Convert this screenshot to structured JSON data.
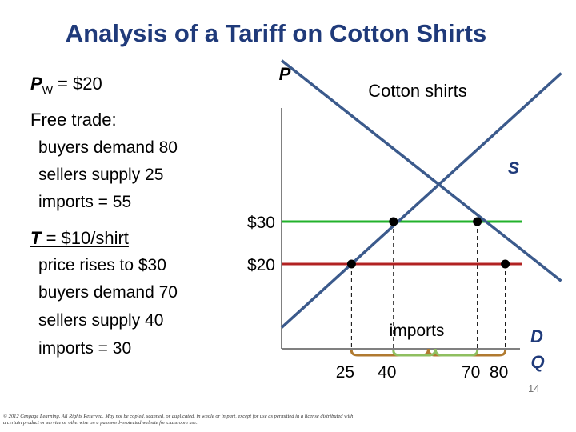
{
  "title": "Analysis of a Tariff on Cotton Shirts",
  "pw": {
    "sym": "P",
    "sub": "W",
    "rest": " = $20"
  },
  "free_trade": {
    "header": "Free trade:",
    "lines": [
      "buyers demand 80",
      "sellers supply 25",
      "imports = 55"
    ]
  },
  "tariff": {
    "header_T": "T",
    "header_rest": " = $10/shirt",
    "lines": [
      "price rises to $30",
      "buyers demand 70",
      "sellers supply 40",
      "imports = 30"
    ]
  },
  "chart_data": {
    "type": "line",
    "title": "Cotton shirts",
    "ylabel": "P",
    "xlabel": "Q",
    "series": [
      {
        "name": "S",
        "x": [
          0,
          100
        ],
        "y": [
          5,
          65
        ],
        "color": "#3b5a8c"
      },
      {
        "name": "D",
        "x": [
          0,
          100
        ],
        "y": [
          68,
          16
        ],
        "color": "#3b5a8c"
      }
    ],
    "price_lines": [
      {
        "label": "$30",
        "value": 30,
        "color": "#22b22b"
      },
      {
        "label": "$20",
        "value": 20,
        "color": "#b22222"
      }
    ],
    "x_ticks": [
      {
        "label": "25",
        "value": 25
      },
      {
        "label": "40",
        "value": 40
      },
      {
        "label": "70",
        "value": 70
      },
      {
        "label": "80",
        "value": 80
      }
    ],
    "points": [
      {
        "x": 25,
        "y": 20
      },
      {
        "x": 80,
        "y": 20
      },
      {
        "x": 40,
        "y": 30
      },
      {
        "x": 70,
        "y": 30
      }
    ],
    "brackets": [
      {
        "from": 25,
        "to": 80,
        "color": "#b07a30"
      },
      {
        "from": 40,
        "to": 70,
        "color": "#8fbf60"
      }
    ],
    "imports_label": "imports"
  },
  "footer": "© 2012 Cengage Learning. All Rights Reserved. May not be copied, scanned, or duplicated, in whole or in part, except for use as permitted in a license distributed with a certain product or service or otherwise on a password-protected website for classroom use.",
  "page_number": "14"
}
